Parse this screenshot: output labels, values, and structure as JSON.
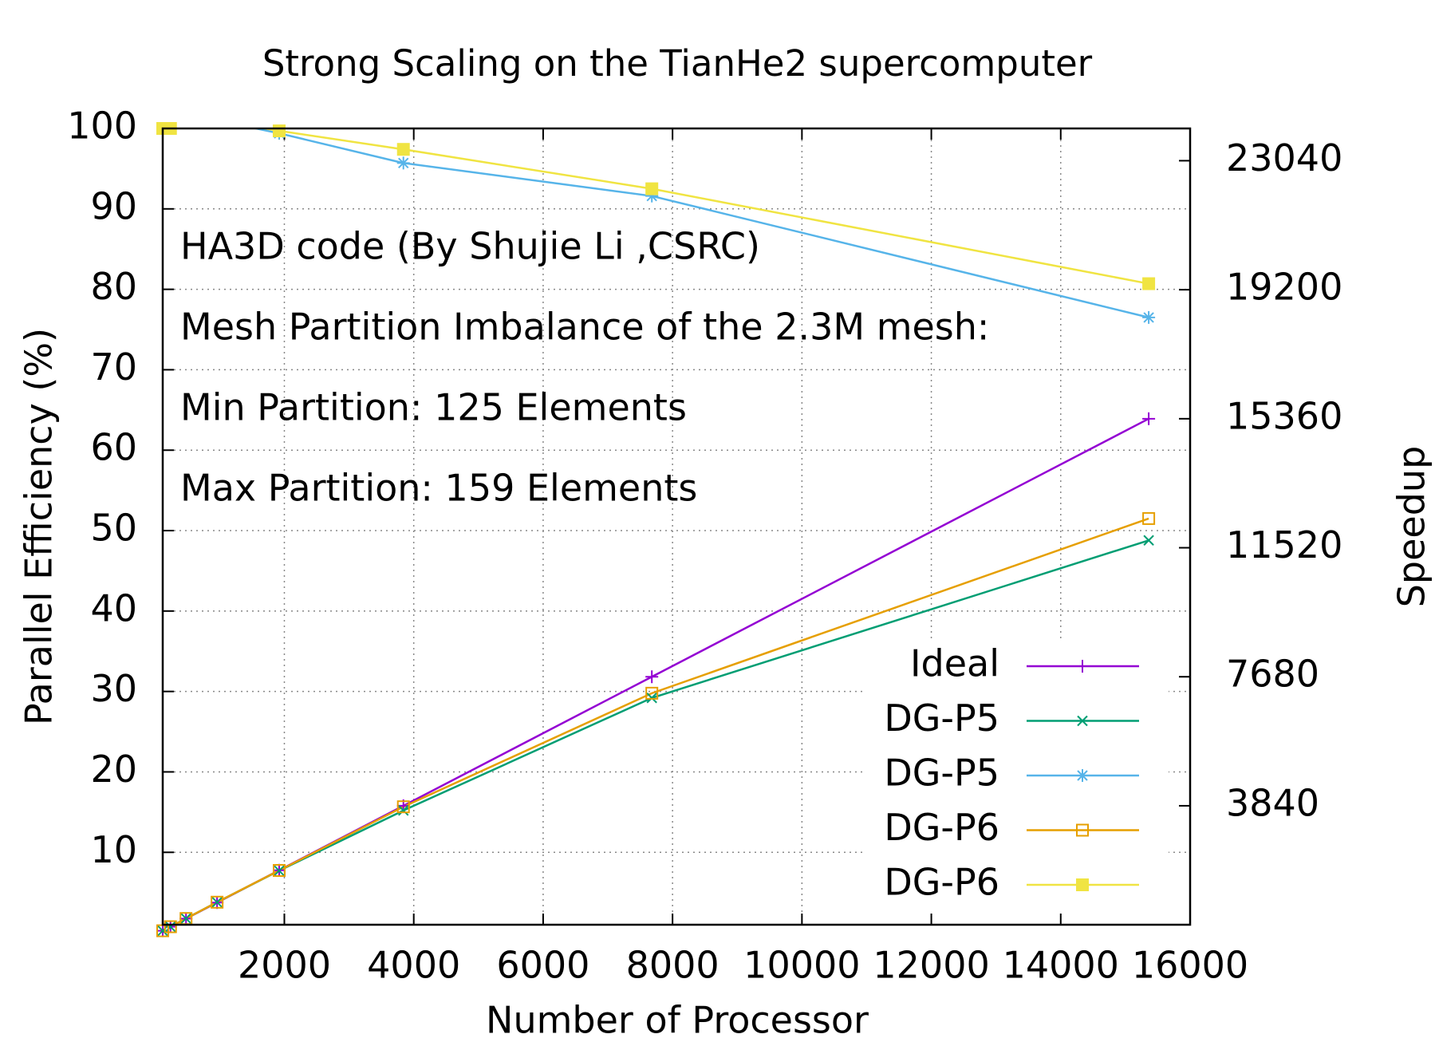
{
  "chart_data": {
    "type": "line",
    "title": "Strong Scaling on the TianHe2 supercomputer",
    "x_label": "Number of Processor",
    "y_label": "Parallel Efficiency (%)",
    "y2_label": "Speedup",
    "annotations": [
      "HA3D code (By Shujie Li ,CSRC)",
      "Mesh Partition Imbalance of the 2.3M mesh:",
      "Min Partition: 125 Elements",
      "Max Partition: 159 Elements"
    ],
    "x": [
      120,
      240,
      480,
      960,
      1920,
      3840,
      7680,
      15360
    ],
    "series": [
      {
        "name": "Ideal",
        "color": "#9400d3",
        "axis": "y2",
        "marker": "plus",
        "values": [
          120,
          240,
          480,
          960,
          1920,
          3840,
          7680,
          15360
        ]
      },
      {
        "name": "DG-P5",
        "color": "#009e73",
        "axis": "y2",
        "marker": "cross",
        "values": [
          120,
          240,
          485,
          970,
          1908,
          3700,
          7050,
          11740
        ]
      },
      {
        "name": "DG-P5",
        "color": "#56b4e9",
        "axis": "y",
        "marker": "star",
        "values": [
          100,
          100,
          101,
          101,
          99.4,
          95.7,
          91.6,
          76.5
        ]
      },
      {
        "name": "DG-P6",
        "color": "#e69f00",
        "axis": "y2",
        "marker": "open-square",
        "values": [
          120,
          240,
          485,
          970,
          1915,
          3810,
          7190,
          12390
        ]
      },
      {
        "name": "DG-P6",
        "color": "#f0e442",
        "axis": "y",
        "marker": "filled-square",
        "values": [
          100,
          100,
          101,
          101,
          99.7,
          97.4,
          92.5,
          80.7
        ]
      }
    ],
    "xlim": [
      120,
      16000
    ],
    "xticks": [
      2000,
      4000,
      6000,
      8000,
      10000,
      12000,
      14000,
      16000
    ],
    "ylim": [
      1,
      100
    ],
    "yticks": [
      10,
      20,
      30,
      40,
      50,
      60,
      70,
      80,
      90,
      100
    ],
    "y2lim": [
      300,
      24000
    ],
    "y2ticks": [
      3840,
      7680,
      11520,
      15360,
      19200,
      23040
    ],
    "grid": true,
    "legend": "bottom-right"
  }
}
